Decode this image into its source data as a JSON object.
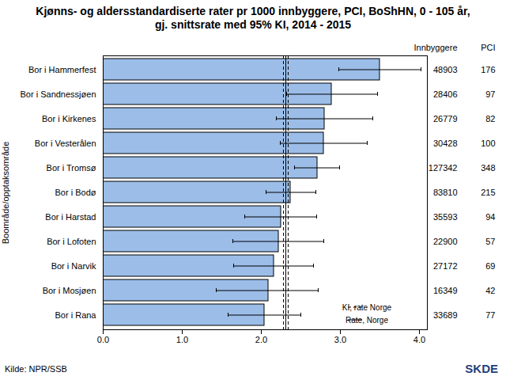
{
  "chart_data": {
    "type": "bar",
    "orientation": "horizontal",
    "title": "Kjønns- og aldersstandardiserte rater pr 1000 innbyggere, PCI, BoShHN, 0 - 105 år, gj. snittsrate med 95% KI, 2014 - 2015",
    "y_label": "Boområde/opptaksområde",
    "categories": [
      "Bor i Hammerfest",
      "Bor i Sandnessjøen",
      "Bor i Kirkenes",
      "Bor i Vesterålen",
      "Bor i Tromsø",
      "Bor i Bodø",
      "Bor i Harstad",
      "Bor i Lofoten",
      "Bor i Narvik",
      "Bor i Mosjøen",
      "Bor i Rana"
    ],
    "values": [
      3.5,
      2.89,
      2.8,
      2.79,
      2.71,
      2.37,
      2.25,
      2.22,
      2.16,
      2.09,
      2.04
    ],
    "ci_low": [
      2.98,
      2.32,
      2.19,
      2.24,
      2.42,
      2.06,
      1.79,
      1.64,
      1.65,
      1.43,
      1.58
    ],
    "ci_high": [
      4.02,
      3.47,
      3.41,
      3.34,
      2.99,
      2.69,
      2.7,
      2.79,
      2.66,
      2.72,
      2.5
    ],
    "color": "#9bbde8",
    "xlim": [
      0,
      4.1
    ],
    "xticks": [
      0,
      1,
      2,
      3,
      4
    ],
    "grid": false,
    "columns": [
      {
        "name": "Innbyggere",
        "values": [
          48903,
          28406,
          26779,
          30428,
          127342,
          83810,
          35593,
          22900,
          27172,
          16349,
          33689
        ]
      },
      {
        "name": "PCI",
        "values": [
          176,
          97,
          82,
          100,
          348,
          215,
          94,
          57,
          69,
          42,
          77
        ]
      }
    ],
    "reference": {
      "rate": 2.31,
      "ci_low": 2.28,
      "ci_high": 2.34,
      "rate_label": "Rate, Norge",
      "ci_label": "KI, rate Norge"
    },
    "legend": "bottom-right",
    "source": "Kilde: NPR/SSB",
    "logo": "SKDE"
  }
}
